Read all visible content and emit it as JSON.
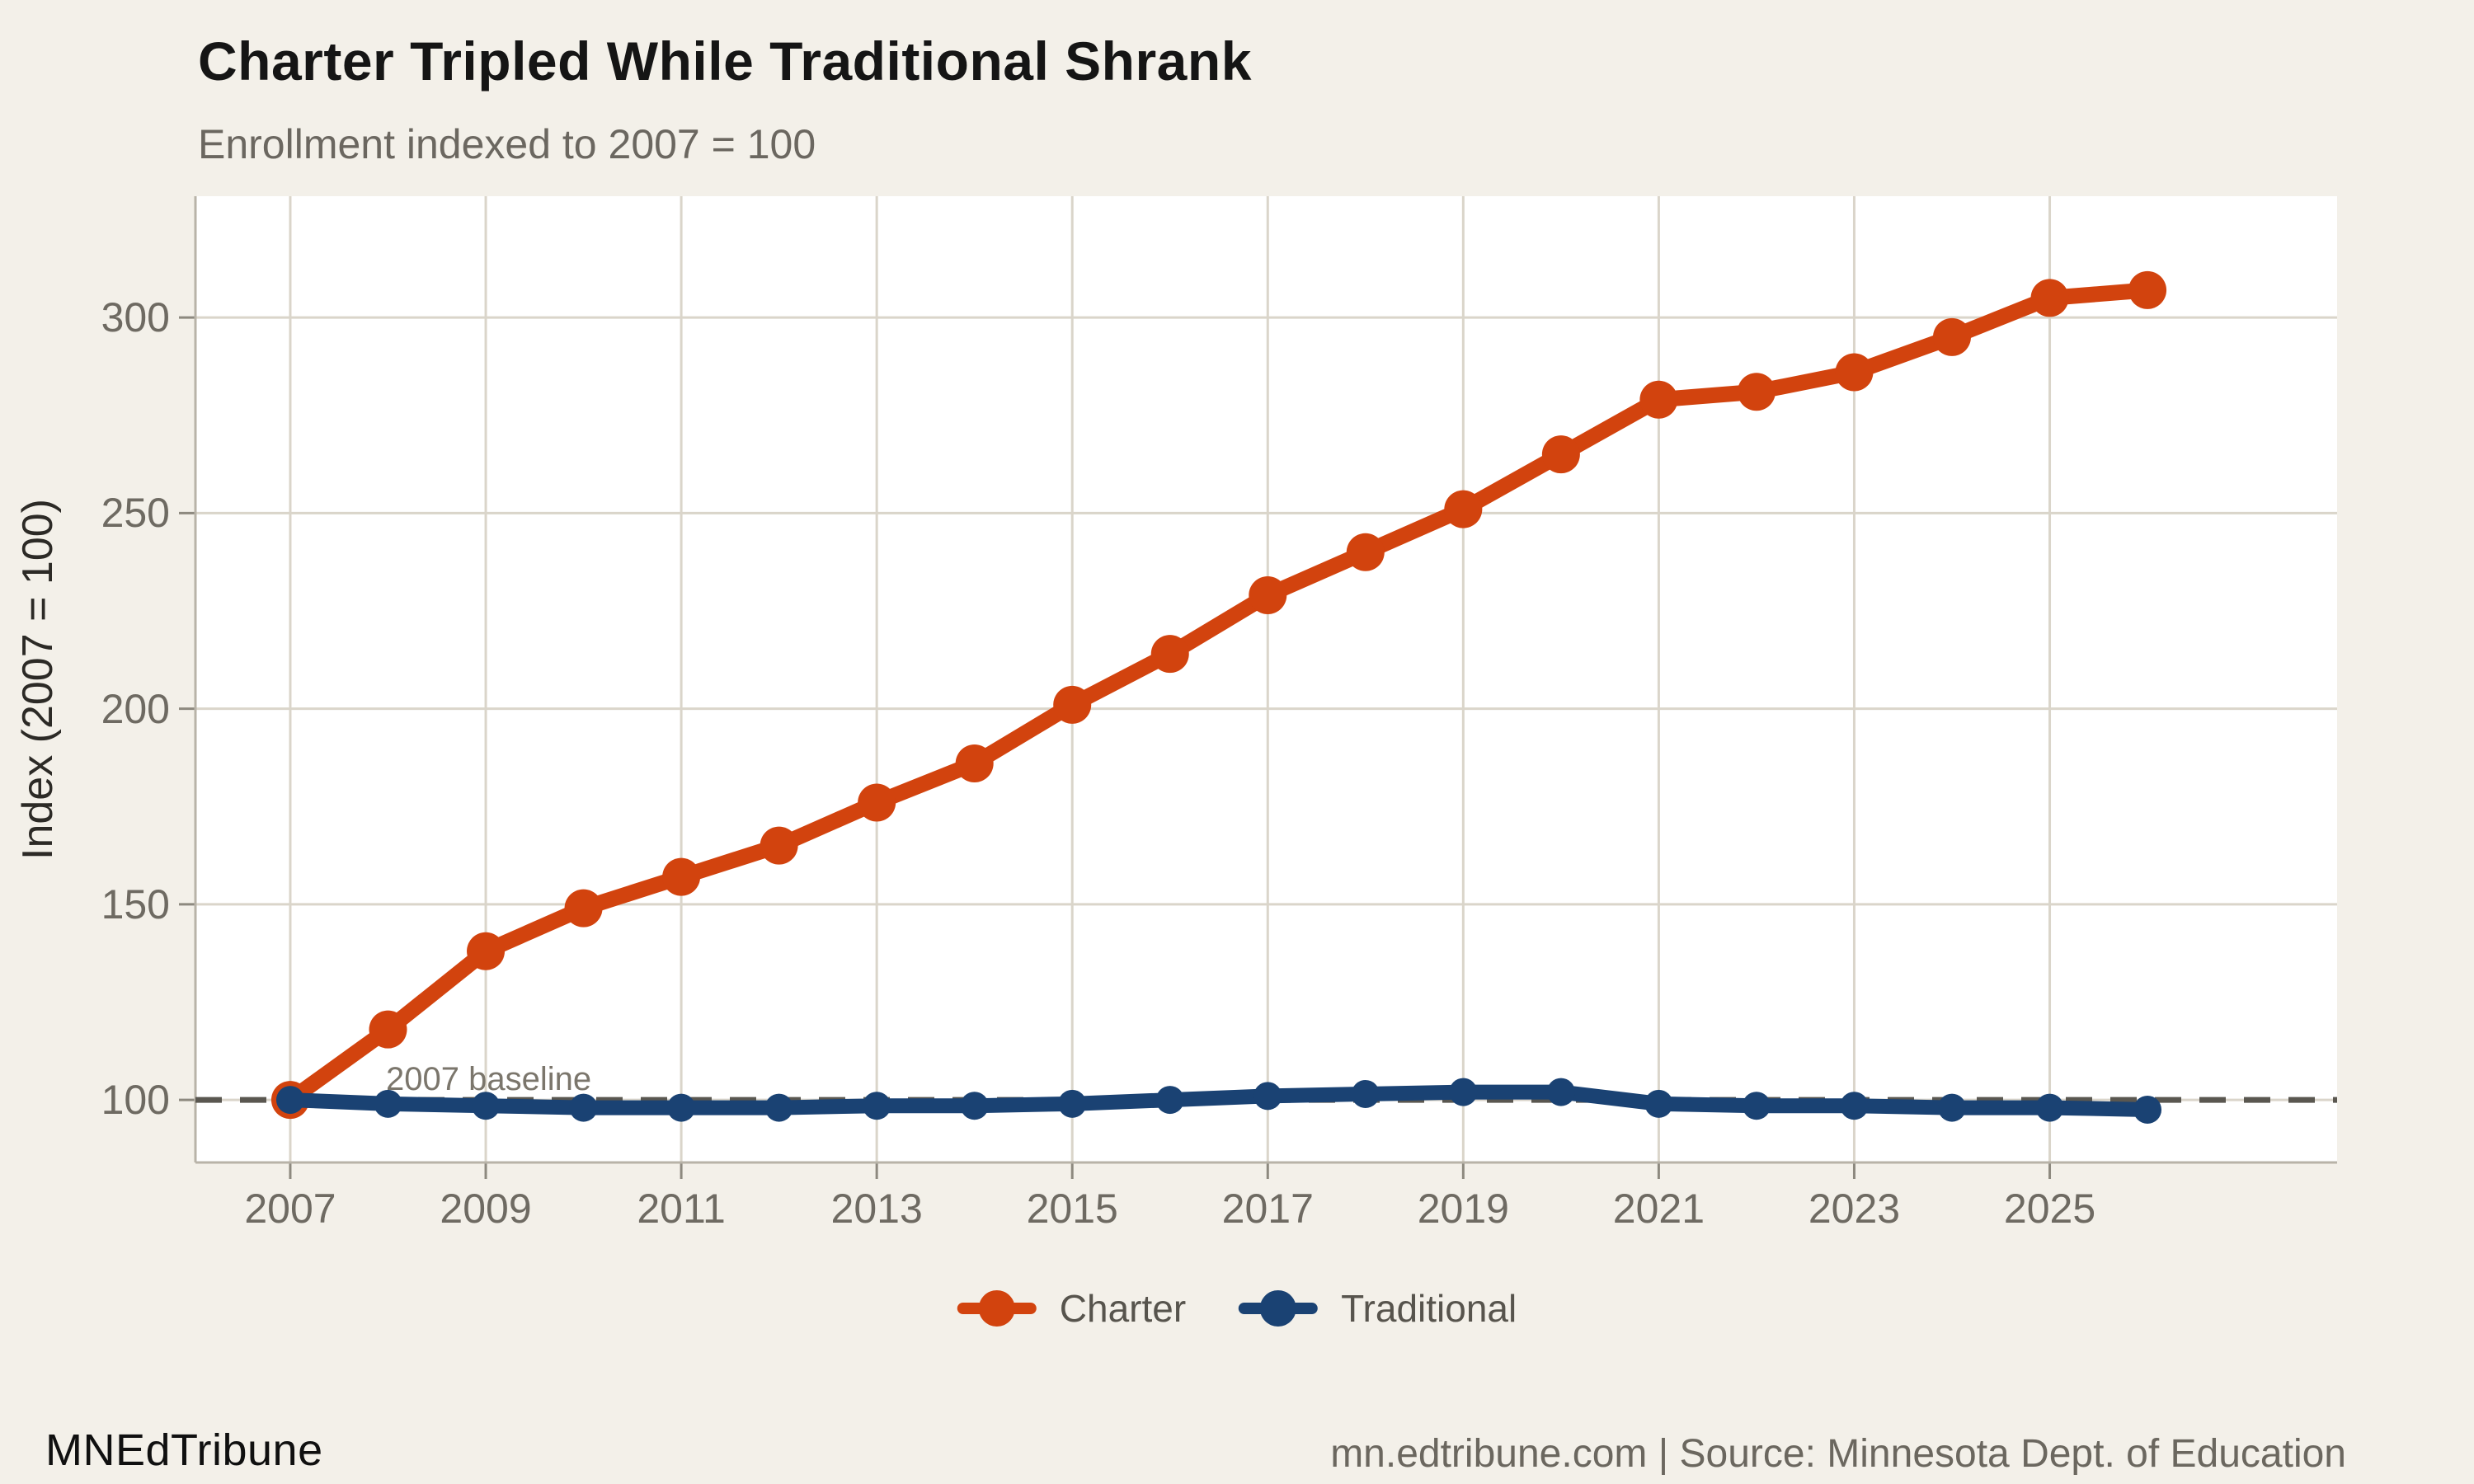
{
  "header": {
    "title": "Charter Tripled While Traditional Shrank",
    "subtitle": "Enrollment indexed to 2007 = 100"
  },
  "axes": {
    "y_title": "Index (2007 = 100)"
  },
  "annotation": {
    "label": "2007 baseline",
    "value": 100
  },
  "legend": {
    "items": [
      {
        "label": "Charter",
        "color": "#d2430e"
      },
      {
        "label": "Traditional",
        "color": "#1a4273"
      }
    ]
  },
  "footer": {
    "brand": "MNEdTribune",
    "source": "mn.edtribune.com | Source: Minnesota Dept. of Education"
  },
  "colors": {
    "background": "#f3f0e9",
    "panel": "#ffffff",
    "grid": "#dad5ca",
    "axis_line": "#b8b3a8",
    "tick": "#8d897f",
    "baseline_dash": "#5a5750"
  },
  "chart_data": {
    "type": "line",
    "title": "Charter Tripled While Traditional Shrank",
    "subtitle": "Enrollment indexed to 2007 = 100",
    "xlabel": "",
    "ylabel": "Index (2007 = 100)",
    "x": [
      2007,
      2008,
      2009,
      2010,
      2011,
      2012,
      2013,
      2014,
      2015,
      2016,
      2017,
      2018,
      2019,
      2020,
      2021,
      2022,
      2023,
      2024,
      2025,
      2026
    ],
    "series": [
      {
        "name": "Charter",
        "color": "#d2430e",
        "stroke_w": 19,
        "marker_r": 23,
        "values": [
          100,
          118,
          138,
          149,
          157,
          165,
          176,
          186,
          201,
          214,
          229,
          240,
          251,
          265,
          279,
          281,
          286,
          295,
          305,
          307
        ]
      },
      {
        "name": "Traditional",
        "color": "#1a4273",
        "stroke_w": 18,
        "marker_r": 17,
        "values": [
          100,
          99,
          98.5,
          98,
          98,
          98,
          98.5,
          98.5,
          99,
          100,
          101,
          101.5,
          102,
          102,
          99,
          98.5,
          98.5,
          98,
          98,
          97.5
        ]
      }
    ],
    "xticks": [
      2007,
      2009,
      2011,
      2013,
      2015,
      2017,
      2019,
      2021,
      2023,
      2025
    ],
    "yticks": [
      100,
      150,
      200,
      250,
      300
    ],
    "xlim": [
      2006.03,
      2027.94
    ],
    "ylim": [
      84,
      331
    ],
    "grid": true,
    "legend_position": "bottom",
    "baseline": {
      "value": 100,
      "label": "2007 baseline",
      "style": "dashed"
    }
  }
}
